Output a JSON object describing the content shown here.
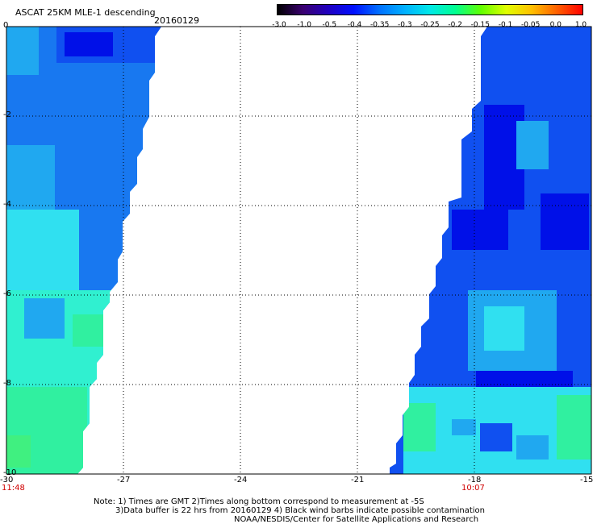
{
  "header": {
    "title": "ASCAT 25KM MLE-1 descending",
    "date": "20160129"
  },
  "colorbar": {
    "ticks": [
      "-3.0",
      "-1.0",
      "-0.5",
      "-0.4",
      "-0.35",
      "-0.3",
      "-0.25",
      "-0.2",
      "-0.15",
      "-0.1",
      "-0.05",
      "0.0",
      "1.0"
    ],
    "colors": [
      "#000000",
      "#3a0070",
      "#2000c0",
      "#0010ff",
      "#0070ff",
      "#00b0ff",
      "#00e8e8",
      "#00ff90",
      "#60ff00",
      "#e0ff00",
      "#ffc000",
      "#ff6000",
      "#ff0000"
    ]
  },
  "map": {
    "x_ticks": [
      "-30",
      "-27",
      "-24",
      "-21",
      "-18",
      "-15"
    ],
    "y_ticks": [
      "0",
      "-2",
      "-4",
      "-6",
      "-8",
      "-10"
    ],
    "time_left": "11:48",
    "time_right": "10:07",
    "colors": {
      "deep_blue": "#0010e8",
      "blue": "#1050f0",
      "mid_blue": "#1878f0",
      "light_blue": "#20a8f0",
      "cyan": "#30e0f0",
      "aqua": "#30f0d0",
      "green_cyan": "#30f0a0",
      "background": "#ffffff",
      "grid": "#000000",
      "time_label": "#d00000"
    }
  },
  "notes": {
    "line1": "Note: 1) Times are GMT 2)Times along bottom correspond to measurement at -5S",
    "line2": "3)Data buffer is 22 hrs from 20160129 4) Black wind barbs indicate possible contamination",
    "line3": "NOAA/NESDIS/Center for Satellite Applications and Research"
  }
}
